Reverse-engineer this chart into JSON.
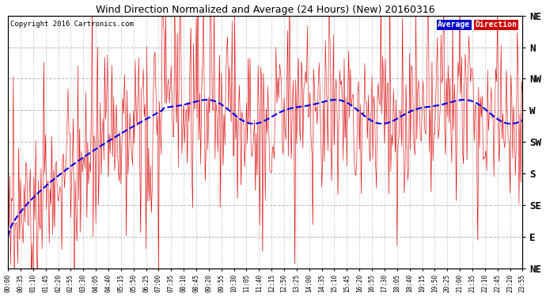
{
  "title": "Wind Direction Normalized and Average (24 Hours) (New) 20160316",
  "copyright": "Copyright 2016 Cartronics.com",
  "ytick_labels": [
    "NE",
    "E",
    "SE",
    "S",
    "SW",
    "W",
    "NW",
    "N",
    "NE"
  ],
  "ytick_values": [
    0,
    45,
    90,
    135,
    180,
    225,
    270,
    315,
    360
  ],
  "ymin": 0,
  "ymax": 360,
  "background_color": "#ffffff",
  "grid_color": "#bbbbbb",
  "raw_color": "#dd0000",
  "avg_color": "#0000ee",
  "legend_avg_bg": "#0000cc",
  "legend_dir_bg": "#cc0000",
  "legend_avg_text": "Average",
  "legend_dir_text": "Direction",
  "n_points": 288,
  "seed": 42
}
